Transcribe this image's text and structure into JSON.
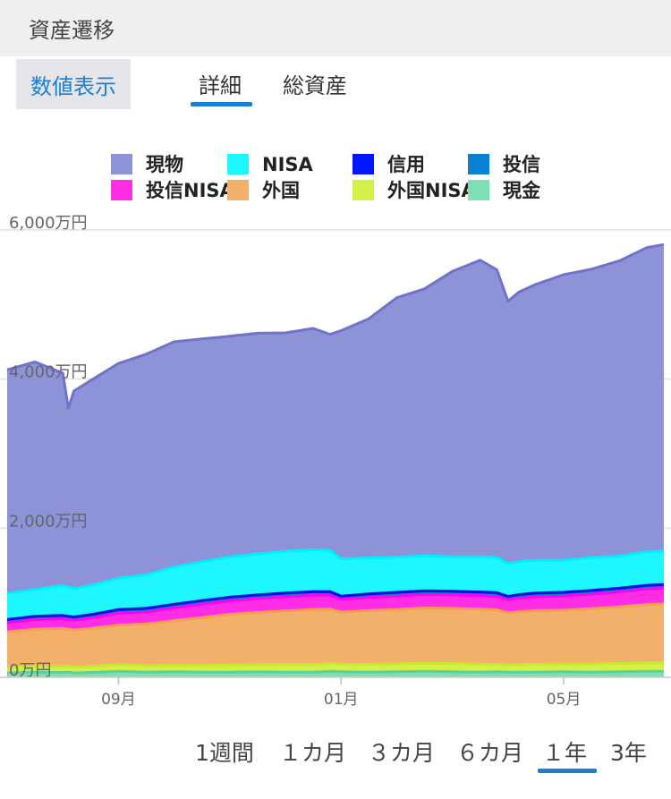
{
  "header": {
    "title": "資産遷移"
  },
  "controls": {
    "numeric_label": "数値表示"
  },
  "tabs": [
    {
      "label": "詳細",
      "active": true
    },
    {
      "label": "総資産",
      "active": false
    }
  ],
  "ranges": [
    {
      "label": "1週間"
    },
    {
      "label": "１カ月"
    },
    {
      "label": "３カ月"
    },
    {
      "label": "６カ月"
    },
    {
      "label": "１年",
      "active": true
    },
    {
      "label": "3年"
    }
  ],
  "colors": {
    "accent": "#1a7fd6"
  },
  "chart_data": {
    "type": "area",
    "stacked": true,
    "y_unit": "万円",
    "ylim": [
      0,
      6000
    ],
    "yticks": [
      {
        "value": 0,
        "label": "0万円"
      },
      {
        "value": 2000,
        "label": "2,000万円"
      },
      {
        "value": 4000,
        "label": "4,000万円"
      },
      {
        "value": 6000,
        "label": "6,000万円"
      }
    ],
    "xticks": [
      {
        "x": 2.0,
        "label": "09月"
      },
      {
        "x": 6.0,
        "label": "01月"
      },
      {
        "x": 10.0,
        "label": "05月"
      }
    ],
    "xlim": [
      0,
      11.8
    ],
    "legend_position": "top",
    "grid": true,
    "x": [
      0,
      0.5,
      1.0,
      1.1,
      1.2,
      1.5,
      2.0,
      2.5,
      3.0,
      3.5,
      4.0,
      4.5,
      5.0,
      5.5,
      5.8,
      6.0,
      6.5,
      7.0,
      7.5,
      8.0,
      8.5,
      8.8,
      9.0,
      9.2,
      9.5,
      10.0,
      10.5,
      11.0,
      11.5,
      11.8
    ],
    "series": [
      {
        "name": "現金",
        "color": "#7ddfb4",
        "line": "#5fd09c",
        "values": [
          60,
          70,
          65,
          70,
          60,
          65,
          80,
          70,
          75,
          70,
          70,
          75,
          70,
          70,
          80,
          75,
          70,
          75,
          80,
          75,
          70,
          75,
          70,
          70,
          70,
          75,
          70,
          75,
          80,
          80
        ]
      },
      {
        "name": "外国NISA",
        "color": "#d4f04a",
        "line": "#c8ea2a",
        "values": [
          70,
          75,
          80,
          75,
          75,
          80,
          90,
          85,
          85,
          90,
          95,
          95,
          100,
          100,
          105,
          100,
          105,
          105,
          110,
          110,
          105,
          100,
          95,
          100,
          105,
          105,
          110,
          110,
          115,
          115
        ]
      },
      {
        "name": "外国",
        "color": "#f3b06a",
        "line": "#f0a050",
        "values": [
          480,
          500,
          510,
          500,
          500,
          510,
          530,
          560,
          600,
          640,
          680,
          700,
          720,
          740,
          730,
          700,
          720,
          730,
          740,
          740,
          740,
          730,
          700,
          710,
          720,
          720,
          740,
          760,
          780,
          790
        ]
      },
      {
        "name": "投信NISA",
        "color": "#ff2ee6",
        "line": "#ff00ee",
        "values": [
          120,
          130,
          130,
          130,
          130,
          140,
          160,
          160,
          170,
          180,
          180,
          185,
          190,
          190,
          185,
          170,
          175,
          180,
          180,
          180,
          180,
          180,
          175,
          180,
          185,
          190,
          195,
          200,
          210,
          210
        ]
      },
      {
        "name": "投信",
        "color": "#0a7fd4",
        "line": "#0a6ac0",
        "values": [
          40,
          40,
          40,
          40,
          40,
          40,
          45,
          45,
          45,
          45,
          45,
          45,
          45,
          45,
          45,
          40,
          45,
          45,
          45,
          45,
          45,
          45,
          40,
          45,
          45,
          45,
          45,
          45,
          45,
          45
        ]
      },
      {
        "name": "信用",
        "color": "#0016ff",
        "line": "#0010e0",
        "values": [
          5,
          5,
          5,
          5,
          5,
          5,
          5,
          5,
          5,
          5,
          5,
          5,
          5,
          5,
          5,
          5,
          5,
          5,
          5,
          5,
          5,
          5,
          5,
          5,
          5,
          5,
          5,
          5,
          5,
          5
        ]
      },
      {
        "name": "NISA",
        "color": "#1ef7ff",
        "line": "#00eeff",
        "values": [
          350,
          360,
          400,
          390,
          380,
          390,
          420,
          450,
          500,
          520,
          540,
          550,
          560,
          560,
          550,
          500,
          480,
          470,
          470,
          460,
          470,
          470,
          440,
          440,
          440,
          430,
          440,
          430,
          450,
          450
        ]
      },
      {
        "name": "現物",
        "color": "#8e93d8",
        "line": "#6f73cc",
        "values": [
          3000,
          3050,
          2850,
          2400,
          2650,
          2750,
          2880,
          2960,
          3020,
          2990,
          2960,
          2960,
          2930,
          2970,
          2900,
          3060,
          3210,
          3480,
          3580,
          3830,
          3980,
          3860,
          3520,
          3620,
          3700,
          3830,
          3870,
          3960,
          4080,
          4110
        ]
      }
    ]
  }
}
